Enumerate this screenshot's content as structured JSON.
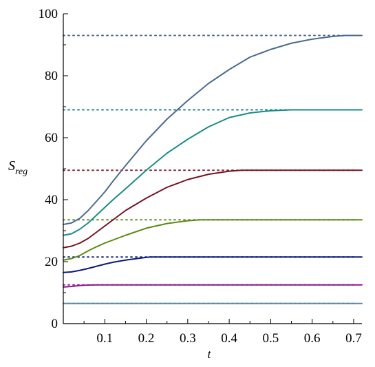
{
  "chart_data": {
    "type": "line",
    "title": "",
    "xlabel": "t",
    "ylabel_main": "S",
    "ylabel_sub": "reg",
    "xlim": [
      0,
      0.72
    ],
    "ylim": [
      0,
      100
    ],
    "x_ticks": [
      0.1,
      0.2,
      0.3,
      0.4,
      0.5,
      0.6,
      0.7
    ],
    "x_tick_labels": [
      "0.1",
      "0.2",
      "0.3",
      "0.4",
      "0.5",
      "0.6",
      "0.7"
    ],
    "y_ticks": [
      0,
      20,
      40,
      60,
      80,
      100
    ],
    "y_tick_labels": [
      "0",
      "20",
      "40",
      "60",
      "80",
      "100"
    ],
    "grid": false,
    "legend": "none",
    "reference_lines": [
      {
        "y": 93,
        "x_range": [
          0,
          0.7
        ],
        "color": "#4a6a90"
      },
      {
        "y": 69,
        "x_range": [
          0,
          0.7
        ],
        "color": "#1a8b86"
      },
      {
        "y": 49.5,
        "x_range": [
          0,
          0.7
        ],
        "color": "#8b2030"
      },
      {
        "y": 33.5,
        "x_range": [
          0,
          0.7
        ],
        "color": "#6a9020"
      },
      {
        "y": 21.5,
        "x_range": [
          0,
          0.7
        ],
        "color": "#1a2a8b"
      },
      {
        "y": 12.5,
        "x_range": [
          0,
          0.7
        ],
        "color": "#a02090"
      },
      {
        "y": 6.5,
        "x_range": [
          0,
          0.7
        ],
        "color": "#3a6a8a"
      }
    ],
    "series": [
      {
        "color": "#4a6a90",
        "x": [
          0,
          0.02,
          0.04,
          0.06,
          0.08,
          0.1,
          0.12,
          0.15,
          0.2,
          0.25,
          0.3,
          0.35,
          0.4,
          0.45,
          0.5,
          0.55,
          0.6,
          0.65,
          0.68,
          0.72
        ],
        "y": [
          32,
          32.5,
          34,
          36.5,
          39.5,
          42.5,
          46,
          51,
          59,
          66,
          72,
          77.5,
          82,
          86,
          88.5,
          90.5,
          91.8,
          92.7,
          93,
          93
        ]
      },
      {
        "color": "#1a8b86",
        "x": [
          0,
          0.02,
          0.04,
          0.06,
          0.08,
          0.1,
          0.12,
          0.15,
          0.2,
          0.25,
          0.3,
          0.35,
          0.4,
          0.45,
          0.5,
          0.55,
          0.57,
          0.72
        ],
        "y": [
          28.5,
          29,
          30.5,
          32.5,
          35,
          37.5,
          40,
          43.5,
          49.5,
          55,
          59.5,
          63.5,
          66.5,
          68,
          68.7,
          69,
          69,
          69
        ]
      },
      {
        "color": "#7a1020",
        "x": [
          0,
          0.02,
          0.04,
          0.06,
          0.08,
          0.1,
          0.12,
          0.15,
          0.2,
          0.25,
          0.3,
          0.35,
          0.4,
          0.43,
          0.45,
          0.72
        ],
        "y": [
          24.5,
          25,
          26,
          27.5,
          29.5,
          31.5,
          33.5,
          36.5,
          40.5,
          44,
          46.5,
          48.2,
          49.2,
          49.5,
          49.5,
          49.5
        ]
      },
      {
        "color": "#5a8a10",
        "x": [
          0,
          0.02,
          0.04,
          0.06,
          0.08,
          0.1,
          0.12,
          0.15,
          0.2,
          0.25,
          0.3,
          0.33,
          0.72
        ],
        "y": [
          20.5,
          21,
          22,
          23.5,
          24.8,
          26,
          27,
          28.5,
          30.8,
          32.3,
          33.2,
          33.5,
          33.5
        ]
      },
      {
        "color": "#0a1a7a",
        "x": [
          0,
          0.02,
          0.04,
          0.06,
          0.08,
          0.1,
          0.12,
          0.15,
          0.2,
          0.21,
          0.72
        ],
        "y": [
          16.5,
          16.7,
          17.2,
          17.8,
          18.5,
          19.2,
          19.8,
          20.5,
          21.4,
          21.5,
          21.5
        ]
      },
      {
        "color": "#8a1a8a",
        "x": [
          0,
          0.02,
          0.04,
          0.06,
          0.08,
          0.72
        ],
        "y": [
          11.8,
          12,
          12.3,
          12.45,
          12.5,
          12.5
        ]
      },
      {
        "color": "#5a8aa0",
        "x": [
          0,
          0.72
        ],
        "y": [
          6.5,
          6.5
        ]
      }
    ]
  }
}
